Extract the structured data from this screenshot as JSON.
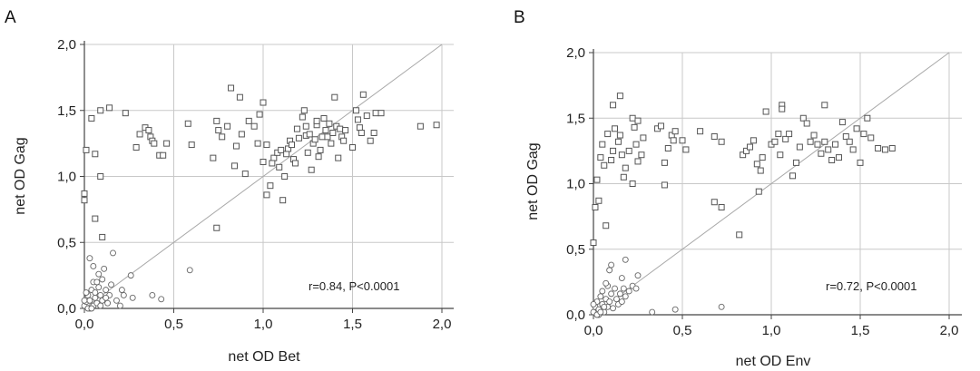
{
  "chart_data": [
    {
      "panel_label": "A",
      "type": "scatter",
      "xlabel": "net OD Bet",
      "ylabel": "net OD Gag",
      "xlim": [
        0,
        2.0
      ],
      "ylim": [
        0,
        2.0
      ],
      "xticks": [
        "0,0",
        "0,5",
        "1,0",
        "1,5",
        "2,0"
      ],
      "yticks": [
        "0,0",
        "0,5",
        "1,0",
        "1,5",
        "2,0"
      ],
      "grid": true,
      "diagonal_line": true,
      "annotation": "r=0.84, P<0.0001",
      "series": [
        {
          "marker": "square",
          "points": [
            [
              0.0,
              0.82
            ],
            [
              0.0,
              0.87
            ],
            [
              0.01,
              1.2
            ],
            [
              0.04,
              1.44
            ],
            [
              0.06,
              1.17
            ],
            [
              0.09,
              1.5
            ],
            [
              0.14,
              1.52
            ],
            [
              0.23,
              1.48
            ],
            [
              0.09,
              1.0
            ],
            [
              0.06,
              0.68
            ],
            [
              0.1,
              0.54
            ],
            [
              0.29,
              1.22
            ],
            [
              0.31,
              1.32
            ],
            [
              0.34,
              1.37
            ],
            [
              0.36,
              1.35
            ],
            [
              0.37,
              1.3
            ],
            [
              0.38,
              1.27
            ],
            [
              0.39,
              1.25
            ],
            [
              0.42,
              1.16
            ],
            [
              0.44,
              1.16
            ],
            [
              0.46,
              1.25
            ],
            [
              0.58,
              1.4
            ],
            [
              0.6,
              1.24
            ],
            [
              0.72,
              1.14
            ],
            [
              0.74,
              1.42
            ],
            [
              0.75,
              1.35
            ],
            [
              0.77,
              1.3
            ],
            [
              0.8,
              1.38
            ],
            [
              0.82,
              1.67
            ],
            [
              0.84,
              1.08
            ],
            [
              0.85,
              1.23
            ],
            [
              0.87,
              1.6
            ],
            [
              0.88,
              1.32
            ],
            [
              0.9,
              1.02
            ],
            [
              0.92,
              1.42
            ],
            [
              0.95,
              1.38
            ],
            [
              0.97,
              1.25
            ],
            [
              0.98,
              1.47
            ],
            [
              1.0,
              1.56
            ],
            [
              1.0,
              1.11
            ],
            [
              1.02,
              1.24
            ],
            [
              0.74,
              0.61
            ],
            [
              1.02,
              0.86
            ],
            [
              1.04,
              0.93
            ],
            [
              1.06,
              1.14
            ],
            [
              1.08,
              1.18
            ],
            [
              1.09,
              1.07
            ],
            [
              1.1,
              1.2
            ],
            [
              1.11,
              0.82
            ],
            [
              1.12,
              1.0
            ],
            [
              1.13,
              1.17
            ],
            [
              1.14,
              1.21
            ],
            [
              1.15,
              1.27
            ],
            [
              1.16,
              1.24
            ],
            [
              1.17,
              1.13
            ],
            [
              1.18,
              1.1
            ],
            [
              1.19,
              1.36
            ],
            [
              1.2,
              1.29
            ],
            [
              1.22,
              1.45
            ],
            [
              1.23,
              1.5
            ],
            [
              1.24,
              1.31
            ],
            [
              1.25,
              1.18
            ],
            [
              1.26,
              1.32
            ],
            [
              1.27,
              1.05
            ],
            [
              1.28,
              1.25
            ],
            [
              1.29,
              1.28
            ],
            [
              1.3,
              1.39
            ],
            [
              1.31,
              1.15
            ],
            [
              1.32,
              1.2
            ],
            [
              1.33,
              1.3
            ],
            [
              1.34,
              1.44
            ],
            [
              1.35,
              1.35
            ],
            [
              1.36,
              1.3
            ],
            [
              1.37,
              1.4
            ],
            [
              1.38,
              1.25
            ],
            [
              1.39,
              1.33
            ],
            [
              1.4,
              1.6
            ],
            [
              1.41,
              1.38
            ],
            [
              1.42,
              1.14
            ],
            [
              1.43,
              1.36
            ],
            [
              1.44,
              1.3
            ],
            [
              1.45,
              1.27
            ],
            [
              1.46,
              1.35
            ],
            [
              1.5,
              1.22
            ],
            [
              1.52,
              1.5
            ],
            [
              1.53,
              1.43
            ],
            [
              1.54,
              1.37
            ],
            [
              1.55,
              1.33
            ],
            [
              1.56,
              1.62
            ],
            [
              1.58,
              1.46
            ],
            [
              1.6,
              1.27
            ],
            [
              1.62,
              1.33
            ],
            [
              1.63,
              1.48
            ],
            [
              1.66,
              1.48
            ],
            [
              1.88,
              1.38
            ],
            [
              1.97,
              1.39
            ],
            [
              1.05,
              1.1
            ],
            [
              1.24,
              1.38
            ],
            [
              1.3,
              1.42
            ]
          ]
        },
        {
          "marker": "circle",
          "points": [
            [
              0.0,
              0.02
            ],
            [
              0.01,
              0.05
            ],
            [
              0.02,
              0.1
            ],
            [
              0.03,
              0.0
            ],
            [
              0.03,
              0.06
            ],
            [
              0.04,
              0.14
            ],
            [
              0.05,
              0.02
            ],
            [
              0.05,
              0.2
            ],
            [
              0.06,
              0.08
            ],
            [
              0.06,
              0.12
            ],
            [
              0.07,
              0.04
            ],
            [
              0.08,
              0.16
            ],
            [
              0.08,
              0.26
            ],
            [
              0.09,
              0.1
            ],
            [
              0.1,
              0.06
            ],
            [
              0.1,
              0.22
            ],
            [
              0.11,
              0.3
            ],
            [
              0.12,
              0.14
            ],
            [
              0.13,
              0.04
            ],
            [
              0.14,
              0.1
            ],
            [
              0.15,
              0.18
            ],
            [
              0.03,
              0.38
            ],
            [
              0.05,
              0.32
            ],
            [
              0.16,
              0.42
            ],
            [
              0.18,
              0.06
            ],
            [
              0.2,
              0.02
            ],
            [
              0.21,
              0.14
            ],
            [
              0.22,
              0.1
            ],
            [
              0.26,
              0.25
            ],
            [
              0.27,
              0.08
            ],
            [
              0.38,
              0.1
            ],
            [
              0.43,
              0.07
            ],
            [
              0.59,
              0.29
            ],
            [
              0.02,
              0.0
            ],
            [
              0.04,
              0.0
            ],
            [
              0.09,
              0.02
            ],
            [
              0.12,
              0.08
            ],
            [
              0.01,
              0.12
            ],
            [
              0.07,
              0.2
            ],
            [
              0.0,
              0.06
            ]
          ]
        }
      ]
    },
    {
      "panel_label": "B",
      "type": "scatter",
      "xlabel": "net OD Env",
      "ylabel": "net OD Gag",
      "xlim": [
        0,
        2.0
      ],
      "ylim": [
        0,
        2.0
      ],
      "xticks": [
        "0,0",
        "0,5",
        "1,0",
        "1,5",
        "2,0"
      ],
      "yticks": [
        "0,0",
        "0,5",
        "1,0",
        "1,5",
        "2,0"
      ],
      "grid": true,
      "diagonal_line": true,
      "annotation": "r=0.72, P<0.0001",
      "series": [
        {
          "marker": "square",
          "points": [
            [
              0.0,
              0.55
            ],
            [
              0.01,
              0.82
            ],
            [
              0.02,
              1.03
            ],
            [
              0.03,
              0.87
            ],
            [
              0.04,
              1.2
            ],
            [
              0.05,
              1.3
            ],
            [
              0.06,
              1.14
            ],
            [
              0.07,
              0.68
            ],
            [
              0.08,
              1.38
            ],
            [
              0.1,
              1.18
            ],
            [
              0.11,
              1.25
            ],
            [
              0.12,
              1.42
            ],
            [
              0.14,
              1.32
            ],
            [
              0.15,
              1.37
            ],
            [
              0.16,
              1.22
            ],
            [
              0.17,
              1.05
            ],
            [
              0.18,
              1.12
            ],
            [
              0.2,
              1.25
            ],
            [
              0.22,
              1.5
            ],
            [
              0.23,
              1.43
            ],
            [
              0.24,
              1.3
            ],
            [
              0.25,
              1.17
            ],
            [
              0.27,
              1.22
            ],
            [
              0.15,
              1.67
            ],
            [
              0.11,
              1.6
            ],
            [
              0.25,
              1.48
            ],
            [
              0.36,
              1.42
            ],
            [
              0.38,
              1.44
            ],
            [
              0.4,
              1.16
            ],
            [
              0.42,
              1.27
            ],
            [
              0.44,
              1.37
            ],
            [
              0.45,
              1.33
            ],
            [
              0.46,
              1.4
            ],
            [
              0.5,
              1.33
            ],
            [
              0.52,
              1.26
            ],
            [
              0.4,
              0.99
            ],
            [
              0.6,
              1.4
            ],
            [
              0.68,
              1.36
            ],
            [
              0.72,
              1.32
            ],
            [
              0.68,
              0.86
            ],
            [
              0.72,
              0.82
            ],
            [
              0.82,
              0.61
            ],
            [
              0.84,
              1.22
            ],
            [
              0.86,
              1.25
            ],
            [
              0.88,
              1.28
            ],
            [
              0.9,
              1.33
            ],
            [
              0.92,
              1.15
            ],
            [
              0.94,
              1.1
            ],
            [
              0.95,
              1.2
            ],
            [
              0.97,
              1.55
            ],
            [
              1.0,
              1.3
            ],
            [
              1.02,
              1.32
            ],
            [
              1.04,
              1.38
            ],
            [
              1.05,
              1.22
            ],
            [
              1.06,
              1.6
            ],
            [
              1.08,
              1.34
            ],
            [
              1.1,
              1.38
            ],
            [
              1.12,
              1.06
            ],
            [
              1.14,
              1.16
            ],
            [
              1.16,
              1.28
            ],
            [
              1.18,
              1.5
            ],
            [
              1.2,
              1.46
            ],
            [
              1.22,
              1.32
            ],
            [
              1.24,
              1.37
            ],
            [
              1.26,
              1.3
            ],
            [
              1.28,
              1.23
            ],
            [
              1.3,
              1.32
            ],
            [
              1.32,
              1.26
            ],
            [
              1.34,
              1.18
            ],
            [
              1.36,
              1.3
            ],
            [
              1.38,
              1.2
            ],
            [
              1.4,
              1.47
            ],
            [
              1.42,
              1.36
            ],
            [
              1.44,
              1.32
            ],
            [
              1.46,
              1.26
            ],
            [
              1.48,
              1.42
            ],
            [
              1.5,
              1.16
            ],
            [
              1.52,
              1.38
            ],
            [
              1.54,
              1.5
            ],
            [
              1.56,
              1.35
            ],
            [
              1.6,
              1.27
            ],
            [
              1.64,
              1.26
            ],
            [
              1.68,
              1.27
            ],
            [
              1.06,
              1.57
            ],
            [
              1.3,
              1.6
            ],
            [
              0.93,
              0.94
            ],
            [
              0.22,
              1.0
            ],
            [
              0.28,
              1.35
            ]
          ]
        },
        {
          "marker": "circle",
          "points": [
            [
              0.0,
              0.02
            ],
            [
              0.01,
              0.06
            ],
            [
              0.02,
              0.1
            ],
            [
              0.03,
              0.0
            ],
            [
              0.03,
              0.04
            ],
            [
              0.04,
              0.14
            ],
            [
              0.05,
              0.08
            ],
            [
              0.05,
              0.18
            ],
            [
              0.06,
              0.02
            ],
            [
              0.07,
              0.12
            ],
            [
              0.08,
              0.06
            ],
            [
              0.08,
              0.22
            ],
            [
              0.09,
              0.1
            ],
            [
              0.1,
              0.16
            ],
            [
              0.11,
              0.05
            ],
            [
              0.12,
              0.2
            ],
            [
              0.13,
              0.12
            ],
            [
              0.14,
              0.08
            ],
            [
              0.15,
              0.16
            ],
            [
              0.16,
              0.1
            ],
            [
              0.17,
              0.2
            ],
            [
              0.18,
              0.14
            ],
            [
              0.2,
              0.18
            ],
            [
              0.22,
              0.22
            ],
            [
              0.24,
              0.2
            ],
            [
              0.25,
              0.3
            ],
            [
              0.09,
              0.34
            ],
            [
              0.1,
              0.38
            ],
            [
              0.18,
              0.42
            ],
            [
              0.16,
              0.28
            ],
            [
              0.33,
              0.02
            ],
            [
              0.46,
              0.04
            ],
            [
              0.72,
              0.06
            ],
            [
              0.02,
              0.0
            ],
            [
              0.04,
              0.02
            ],
            [
              0.06,
              0.06
            ],
            [
              0.07,
              0.24
            ],
            [
              0.0,
              0.08
            ]
          ]
        }
      ]
    }
  ]
}
